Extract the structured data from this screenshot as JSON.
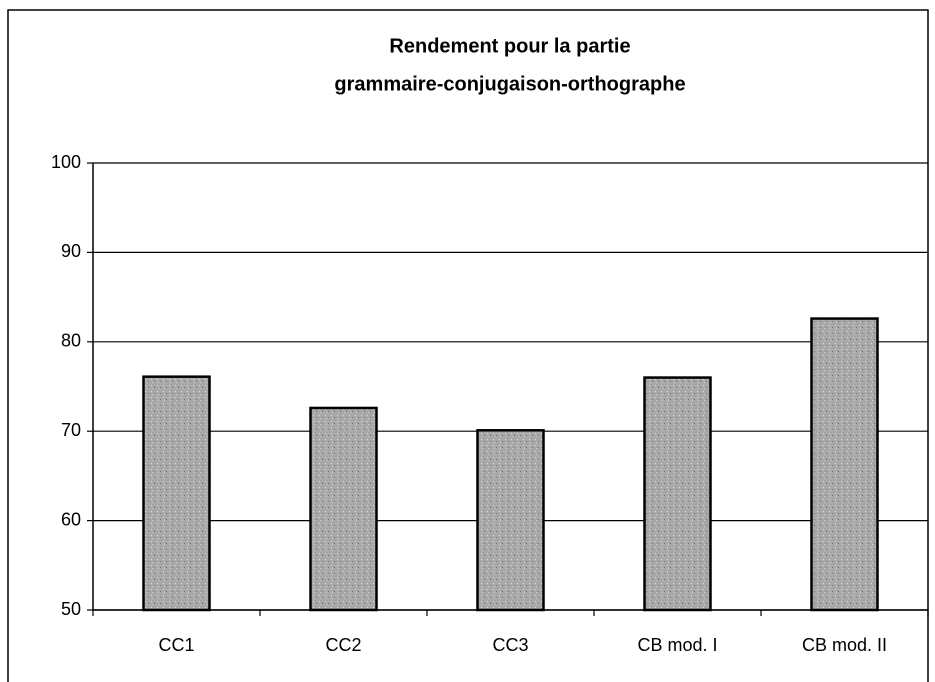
{
  "chart_data": {
    "type": "bar",
    "title": [
      "Rendement pour la partie",
      "grammaire-conjugaison-orthographe"
    ],
    "categories": [
      "CC1",
      "CC2",
      "CC3",
      "CB mod. I",
      "CB mod. II"
    ],
    "values": [
      76.1,
      72.6,
      70.1,
      76.0,
      82.6
    ],
    "color": "#a8a8a8",
    "ylim": [
      50,
      100
    ],
    "yticks": [
      50,
      60,
      70,
      80,
      90,
      100
    ],
    "grid": true
  }
}
